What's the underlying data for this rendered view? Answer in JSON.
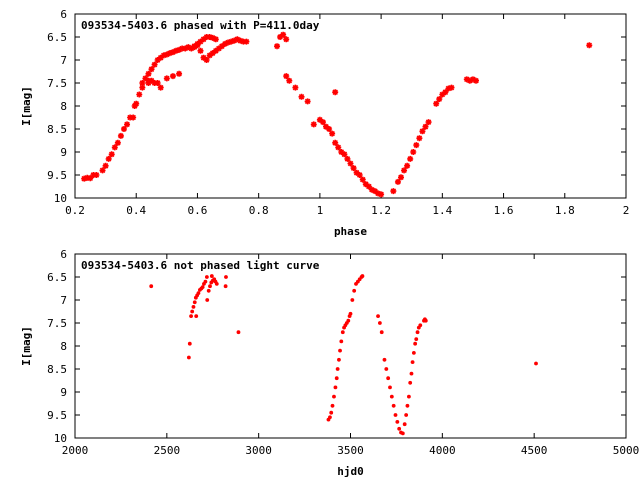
{
  "chart_data": [
    {
      "type": "scatter",
      "title": "093534-5403.6 phased with P=411.0day",
      "xlabel": "phase",
      "ylabel": "I[mag]",
      "xlim": [
        0.2,
        2
      ],
      "ylim": [
        10,
        6
      ],
      "y_inverted": true,
      "grid": false,
      "xticks": [
        0.2,
        0.4,
        0.6,
        0.8,
        1,
        1.2,
        1.4,
        1.6,
        1.8,
        2
      ],
      "xtick_labels": [
        "0.2",
        "0.4",
        "0.6",
        "0.8",
        "1",
        "1.2",
        "1.4",
        "1.6",
        "1.8",
        "2"
      ],
      "yticks": [
        6,
        6.5,
        7,
        7.5,
        8,
        8.5,
        9,
        9.5,
        10
      ],
      "ytick_labels": [
        "6",
        "6.5",
        "7",
        "7.5",
        "8",
        "8.5",
        "9",
        "9.5",
        "10"
      ],
      "marker_color": "#ff0000",
      "marker": "cross",
      "points": [
        [
          0.23,
          9.58
        ],
        [
          0.24,
          9.56
        ],
        [
          0.25,
          9.57
        ],
        [
          0.26,
          9.5
        ],
        [
          0.27,
          9.5
        ],
        [
          0.29,
          9.4
        ],
        [
          0.3,
          9.3
        ],
        [
          0.31,
          9.15
        ],
        [
          0.32,
          9.05
        ],
        [
          0.33,
          8.9
        ],
        [
          0.34,
          8.8
        ],
        [
          0.35,
          8.65
        ],
        [
          0.36,
          8.5
        ],
        [
          0.37,
          8.4
        ],
        [
          0.38,
          8.25
        ],
        [
          0.39,
          8.25
        ],
        [
          0.395,
          8.0
        ],
        [
          0.4,
          7.95
        ],
        [
          0.41,
          7.75
        ],
        [
          0.42,
          7.6
        ],
        [
          0.43,
          7.4
        ],
        [
          0.44,
          7.3
        ],
        [
          0.45,
          7.2
        ],
        [
          0.46,
          7.1
        ],
        [
          0.47,
          7.0
        ],
        [
          0.48,
          6.95
        ],
        [
          0.49,
          6.9
        ],
        [
          0.5,
          6.88
        ],
        [
          0.51,
          6.85
        ],
        [
          0.52,
          6.83
        ],
        [
          0.53,
          6.8
        ],
        [
          0.54,
          6.78
        ],
        [
          0.55,
          6.75
        ],
        [
          0.56,
          6.75
        ],
        [
          0.57,
          6.72
        ],
        [
          0.58,
          6.75
        ],
        [
          0.59,
          6.7
        ],
        [
          0.6,
          6.68
        ],
        [
          0.61,
          6.6
        ],
        [
          0.62,
          6.55
        ],
        [
          0.63,
          6.5
        ],
        [
          0.64,
          6.5
        ],
        [
          0.65,
          6.52
        ],
        [
          0.66,
          6.55
        ],
        [
          0.61,
          6.8
        ],
        [
          0.62,
          6.95
        ],
        [
          0.63,
          7.0
        ],
        [
          0.64,
          6.9
        ],
        [
          0.65,
          6.85
        ],
        [
          0.66,
          6.8
        ],
        [
          0.67,
          6.75
        ],
        [
          0.68,
          6.7
        ],
        [
          0.69,
          6.65
        ],
        [
          0.7,
          6.62
        ],
        [
          0.71,
          6.6
        ],
        [
          0.72,
          6.58
        ],
        [
          0.73,
          6.55
        ],
        [
          0.74,
          6.58
        ],
        [
          0.75,
          6.6
        ],
        [
          0.76,
          6.6
        ],
        [
          0.6,
          6.65
        ],
        [
          0.59,
          6.72
        ],
        [
          0.42,
          7.5
        ],
        [
          0.44,
          7.5
        ],
        [
          0.45,
          7.45
        ],
        [
          0.46,
          7.5
        ],
        [
          0.47,
          7.5
        ],
        [
          0.48,
          7.6
        ],
        [
          0.5,
          7.4
        ],
        [
          0.52,
          7.35
        ],
        [
          0.54,
          7.3
        ],
        [
          0.44,
          7.45
        ],
        [
          0.86,
          6.7
        ],
        [
          0.87,
          6.5
        ],
        [
          0.88,
          6.45
        ],
        [
          0.89,
          6.55
        ],
        [
          0.89,
          7.35
        ],
        [
          0.9,
          7.45
        ],
        [
          0.92,
          7.6
        ],
        [
          0.94,
          7.8
        ],
        [
          0.96,
          7.9
        ],
        [
          0.98,
          8.4
        ],
        [
          1.0,
          8.3
        ],
        [
          1.01,
          8.35
        ],
        [
          1.02,
          8.45
        ],
        [
          1.03,
          8.5
        ],
        [
          1.04,
          8.6
        ],
        [
          1.05,
          7.7
        ],
        [
          1.05,
          8.8
        ],
        [
          1.06,
          8.9
        ],
        [
          1.07,
          9.0
        ],
        [
          1.08,
          9.05
        ],
        [
          1.09,
          9.15
        ],
        [
          1.1,
          9.25
        ],
        [
          1.11,
          9.35
        ],
        [
          1.12,
          9.45
        ],
        [
          1.13,
          9.5
        ],
        [
          1.14,
          9.6
        ],
        [
          1.15,
          9.7
        ],
        [
          1.16,
          9.75
        ],
        [
          1.17,
          9.82
        ],
        [
          1.18,
          9.85
        ],
        [
          1.19,
          9.9
        ],
        [
          1.2,
          9.92
        ],
        [
          1.24,
          9.85
        ],
        [
          1.255,
          9.65
        ],
        [
          1.265,
          9.55
        ],
        [
          1.275,
          9.4
        ],
        [
          1.285,
          9.3
        ],
        [
          1.295,
          9.15
        ],
        [
          1.305,
          9.0
        ],
        [
          1.315,
          8.85
        ],
        [
          1.325,
          8.7
        ],
        [
          1.335,
          8.55
        ],
        [
          1.345,
          8.45
        ],
        [
          1.355,
          8.35
        ],
        [
          1.38,
          7.95
        ],
        [
          1.39,
          7.85
        ],
        [
          1.4,
          7.75
        ],
        [
          1.41,
          7.7
        ],
        [
          1.42,
          7.62
        ],
        [
          1.43,
          7.6
        ],
        [
          1.48,
          7.42
        ],
        [
          1.49,
          7.45
        ],
        [
          1.5,
          7.42
        ],
        [
          1.51,
          7.45
        ],
        [
          1.88,
          6.68
        ]
      ]
    },
    {
      "type": "scatter",
      "title": "093534-5403.6 not phased light curve",
      "xlabel": "hjd0",
      "ylabel": "I[mag]",
      "xlim": [
        2000,
        5000
      ],
      "ylim": [
        10,
        6
      ],
      "y_inverted": true,
      "grid": false,
      "xticks": [
        2000,
        2500,
        3000,
        3500,
        4000,
        4500,
        5000
      ],
      "xtick_labels": [
        "2000",
        "2500",
        "3000",
        "3500",
        "4000",
        "4500",
        "5000"
      ],
      "yticks": [
        6,
        6.5,
        7,
        7.5,
        8,
        8.5,
        9,
        9.5,
        10
      ],
      "ytick_labels": [
        "6",
        "6.5",
        "7",
        "7.5",
        "8",
        "8.5",
        "9",
        "9.5",
        "10"
      ],
      "marker_color": "#ff0000",
      "marker": "dot",
      "points": [
        [
          2415,
          6.7
        ],
        [
          2620,
          8.25
        ],
        [
          2625,
          7.95
        ],
        [
          2632,
          7.35
        ],
        [
          2638,
          7.25
        ],
        [
          2645,
          7.15
        ],
        [
          2652,
          7.05
        ],
        [
          2658,
          6.95
        ],
        [
          2665,
          6.9
        ],
        [
          2672,
          6.85
        ],
        [
          2680,
          6.78
        ],
        [
          2688,
          6.75
        ],
        [
          2695,
          6.72
        ],
        [
          2702,
          6.65
        ],
        [
          2710,
          6.6
        ],
        [
          2660,
          7.35
        ],
        [
          2720,
          7.0
        ],
        [
          2728,
          6.8
        ],
        [
          2735,
          6.7
        ],
        [
          2742,
          6.62
        ],
        [
          2750,
          6.58
        ],
        [
          2758,
          6.55
        ],
        [
          2765,
          6.6
        ],
        [
          2772,
          6.65
        ],
        [
          2718,
          6.5
        ],
        [
          2745,
          6.48
        ],
        [
          2820,
          6.7
        ],
        [
          2822,
          6.5
        ],
        [
          2890,
          7.7
        ],
        [
          3380,
          9.6
        ],
        [
          3388,
          9.55
        ],
        [
          3395,
          9.45
        ],
        [
          3402,
          9.3
        ],
        [
          3410,
          9.1
        ],
        [
          3418,
          8.9
        ],
        [
          3425,
          8.7
        ],
        [
          3430,
          8.5
        ],
        [
          3437,
          8.3
        ],
        [
          3443,
          8.1
        ],
        [
          3450,
          7.9
        ],
        [
          3458,
          7.7
        ],
        [
          3465,
          7.6
        ],
        [
          3472,
          7.55
        ],
        [
          3480,
          7.5
        ],
        [
          3488,
          7.45
        ],
        [
          3495,
          7.35
        ],
        [
          3500,
          7.3
        ],
        [
          3510,
          7.0
        ],
        [
          3520,
          6.8
        ],
        [
          3530,
          6.65
        ],
        [
          3540,
          6.6
        ],
        [
          3550,
          6.55
        ],
        [
          3560,
          6.5
        ],
        [
          3565,
          6.48
        ],
        [
          3650,
          7.35
        ],
        [
          3660,
          7.5
        ],
        [
          3670,
          7.7
        ],
        [
          3685,
          8.3
        ],
        [
          3695,
          8.5
        ],
        [
          3705,
          8.7
        ],
        [
          3715,
          8.9
        ],
        [
          3725,
          9.1
        ],
        [
          3735,
          9.3
        ],
        [
          3745,
          9.5
        ],
        [
          3755,
          9.65
        ],
        [
          3765,
          9.8
        ],
        [
          3775,
          9.88
        ],
        [
          3785,
          9.9
        ],
        [
          3795,
          9.7
        ],
        [
          3803,
          9.5
        ],
        [
          3810,
          9.3
        ],
        [
          3818,
          9.1
        ],
        [
          3825,
          8.8
        ],
        [
          3832,
          8.6
        ],
        [
          3838,
          8.35
        ],
        [
          3845,
          8.15
        ],
        [
          3852,
          7.95
        ],
        [
          3858,
          7.85
        ],
        [
          3865,
          7.7
        ],
        [
          3872,
          7.6
        ],
        [
          3880,
          7.55
        ],
        [
          3900,
          7.45
        ],
        [
          3905,
          7.42
        ],
        [
          3910,
          7.45
        ],
        [
          4510,
          8.38
        ]
      ]
    }
  ]
}
